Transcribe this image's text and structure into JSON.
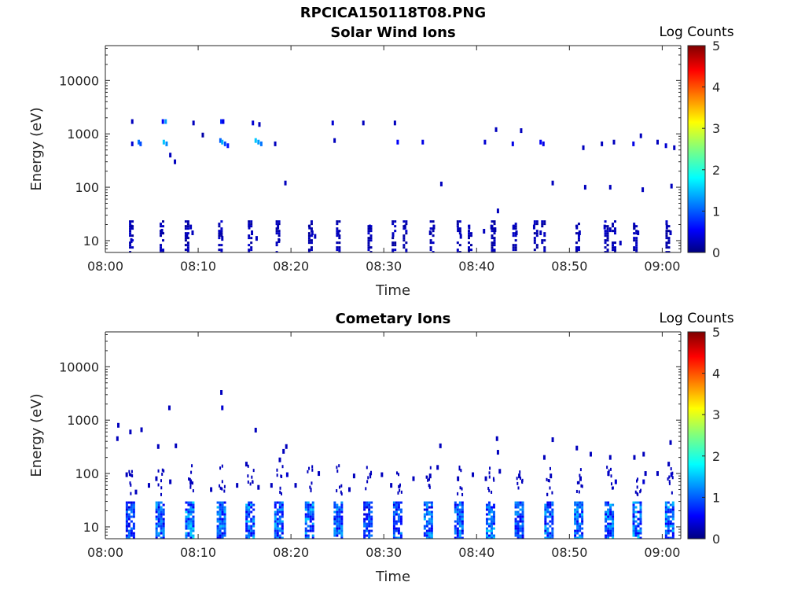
{
  "figure_title": "RPCICA150118T08.PNG",
  "colorbar": {
    "label": "Log Counts",
    "ticks": [
      "0",
      "1",
      "2",
      "3",
      "4",
      "5"
    ],
    "range": [
      0,
      5
    ],
    "colormap": "jet"
  },
  "chart_data": [
    {
      "type": "heatmap",
      "title": "Solar Wind Ions",
      "xlabel": "Time",
      "ylabel": "Energy (eV)",
      "x_ticks": [
        "08:00",
        "08:10",
        "08:20",
        "08:30",
        "08:40",
        "08:50",
        "09:00"
      ],
      "x_range_minutes": [
        0,
        62
      ],
      "y_ticks": [
        "10",
        "100",
        "1000",
        "10000"
      ],
      "y_scale": "log",
      "ylim": [
        6,
        45000
      ],
      "cells": [
        [
          2.9,
          1700,
          0.3
        ],
        [
          2.9,
          650,
          0.4
        ],
        [
          3.6,
          700,
          1.2
        ],
        [
          3.8,
          650,
          1.0
        ],
        [
          6.2,
          1700,
          0.6
        ],
        [
          6.5,
          1700,
          1.4
        ],
        [
          6.3,
          700,
          1.6
        ],
        [
          6.6,
          650,
          1.3
        ],
        [
          7.0,
          400,
          0.3
        ],
        [
          7.5,
          300,
          0.3
        ],
        [
          9.5,
          1600,
          0.3
        ],
        [
          10.5,
          950,
          0.2
        ],
        [
          12.5,
          1700,
          0.8
        ],
        [
          12.7,
          1700,
          0.5
        ],
        [
          12.4,
          750,
          1.1
        ],
        [
          12.6,
          700,
          1.5
        ],
        [
          12.9,
          650,
          1.0
        ],
        [
          13.2,
          600,
          0.7
        ],
        [
          15.9,
          1600,
          0.4
        ],
        [
          16.2,
          750,
          1.6
        ],
        [
          16.5,
          700,
          1.4
        ],
        [
          16.8,
          650,
          1.2
        ],
        [
          16.6,
          1500,
          0.3
        ],
        [
          18.3,
          650,
          0.3
        ],
        [
          19.4,
          120,
          0.3
        ],
        [
          24.5,
          1600,
          0.4
        ],
        [
          24.7,
          750,
          0.3
        ],
        [
          27.8,
          1600,
          0.3
        ],
        [
          31.2,
          1600,
          0.3
        ],
        [
          31.5,
          700,
          0.6
        ],
        [
          34.2,
          700,
          0.5
        ],
        [
          36.2,
          115,
          0.3
        ],
        [
          40.9,
          700,
          0.4
        ],
        [
          42.1,
          1200,
          0.3
        ],
        [
          43.9,
          650,
          0.5
        ],
        [
          44.8,
          1150,
          0.3
        ],
        [
          46.9,
          700,
          0.6
        ],
        [
          47.2,
          650,
          0.5
        ],
        [
          48.2,
          120,
          0.3
        ],
        [
          51.5,
          550,
          0.3
        ],
        [
          51.7,
          100,
          0.3
        ],
        [
          53.5,
          650,
          0.3
        ],
        [
          54.4,
          100,
          0.3
        ],
        [
          54.8,
          700,
          0.3
        ],
        [
          56.9,
          650,
          0.5
        ],
        [
          57.7,
          920,
          0.3
        ],
        [
          57.9,
          90,
          0.3
        ],
        [
          59.5,
          700,
          0.3
        ],
        [
          60.4,
          600,
          0.4
        ],
        [
          61.0,
          105,
          0.3
        ],
        [
          61.3,
          550,
          0.3
        ],
        [
          2.8,
          18,
          0.3
        ],
        [
          2.8,
          10,
          0.3
        ],
        [
          6.1,
          15,
          0.3
        ],
        [
          8.8,
          12,
          0.3
        ],
        [
          9.2,
          18,
          0.3
        ],
        [
          9.4,
          14,
          0.3
        ],
        [
          12.4,
          14,
          0.3
        ],
        [
          12.6,
          11,
          0.3
        ],
        [
          15.5,
          18,
          0.3
        ],
        [
          15.8,
          14,
          0.3
        ],
        [
          16.3,
          11,
          0.3
        ],
        [
          18.6,
          18,
          0.3
        ],
        [
          18.7,
          10,
          0.3
        ],
        [
          22.0,
          18,
          0.3
        ],
        [
          22.3,
          14,
          0.3
        ],
        [
          22.6,
          12,
          0.3
        ],
        [
          25.1,
          14,
          0.3
        ],
        [
          28.5,
          18,
          0.3
        ],
        [
          31.0,
          13,
          0.3
        ],
        [
          32.3,
          18,
          0.3
        ],
        [
          35.0,
          14,
          0.3
        ],
        [
          35.4,
          18,
          0.3
        ],
        [
          38.0,
          16,
          0.3
        ],
        [
          38.3,
          12,
          0.3
        ],
        [
          39.2,
          18,
          0.3
        ],
        [
          40.8,
          15,
          0.3
        ],
        [
          41.6,
          18,
          0.3
        ],
        [
          42.0,
          16,
          0.3
        ],
        [
          42.3,
          36,
          0.3
        ],
        [
          44.0,
          18,
          0.3
        ],
        [
          44.3,
          14,
          0.3
        ],
        [
          46.2,
          18,
          0.3
        ],
        [
          46.9,
          14,
          0.3
        ],
        [
          50.8,
          18,
          0.3
        ],
        [
          51.1,
          14,
          0.3
        ],
        [
          50.8,
          7,
          0.3
        ],
        [
          53.8,
          18,
          0.4
        ],
        [
          54.4,
          16,
          0.3
        ],
        [
          55.5,
          9,
          0.3
        ],
        [
          57.0,
          18,
          0.3
        ],
        [
          57.4,
          14,
          0.3
        ],
        [
          60.5,
          18,
          0.3
        ],
        [
          60.9,
          14,
          0.3
        ]
      ],
      "bursts": [
        [
          2.8,
          0.3
        ],
        [
          6.1,
          0.3
        ],
        [
          8.8,
          0.3
        ],
        [
          12.4,
          0.3
        ],
        [
          15.6,
          0.3
        ],
        [
          18.6,
          0.3
        ],
        [
          22.1,
          0.3
        ],
        [
          25.1,
          0.3
        ],
        [
          28.5,
          0.3
        ],
        [
          31.1,
          0.3
        ],
        [
          32.3,
          0.3
        ],
        [
          35.2,
          0.3
        ],
        [
          38.1,
          0.3
        ],
        [
          39.3,
          0.3
        ],
        [
          41.8,
          0.3
        ],
        [
          44.1,
          0.3
        ],
        [
          46.4,
          0.3
        ],
        [
          47.2,
          0.3
        ],
        [
          50.9,
          0.3
        ],
        [
          54.0,
          0.3
        ],
        [
          54.8,
          0.3
        ],
        [
          57.1,
          0.3
        ],
        [
          60.6,
          0.3
        ]
      ]
    },
    {
      "type": "heatmap",
      "title": "Cometary Ions",
      "xlabel": "Time",
      "ylabel": "Energy (eV)",
      "x_ticks": [
        "08:00",
        "08:10",
        "08:20",
        "08:30",
        "08:40",
        "08:50",
        "09:00"
      ],
      "x_range_minutes": [
        0,
        62
      ],
      "y_ticks": [
        "10",
        "100",
        "1000",
        "10000"
      ],
      "y_scale": "log",
      "ylim": [
        6,
        45000
      ],
      "cells": [
        [
          1.4,
          800,
          0.3
        ],
        [
          1.3,
          450,
          0.3
        ],
        [
          2.7,
          600,
          0.3
        ],
        [
          3.9,
          660,
          0.3
        ],
        [
          5.7,
          320,
          0.3
        ],
        [
          6.9,
          1700,
          0.3
        ],
        [
          7.6,
          330,
          0.3
        ],
        [
          12.5,
          3300,
          0.3
        ],
        [
          12.6,
          1700,
          0.4
        ],
        [
          16.2,
          650,
          0.3
        ],
        [
          15.2,
          150,
          0.3
        ],
        [
          19.5,
          320,
          0.3
        ],
        [
          19.2,
          260,
          0.3
        ],
        [
          18.8,
          180,
          0.3
        ],
        [
          19.6,
          95,
          0.4
        ],
        [
          23.0,
          100,
          0.3
        ],
        [
          26.8,
          90,
          0.3
        ],
        [
          29.8,
          95,
          0.3
        ],
        [
          33.2,
          80,
          0.3
        ],
        [
          36.1,
          330,
          0.3
        ],
        [
          35.8,
          130,
          0.3
        ],
        [
          39.6,
          95,
          0.3
        ],
        [
          42.2,
          450,
          0.3
        ],
        [
          42.3,
          250,
          0.3
        ],
        [
          42.5,
          110,
          0.3
        ],
        [
          48.2,
          430,
          0.3
        ],
        [
          47.3,
          200,
          0.3
        ],
        [
          50.8,
          300,
          0.3
        ],
        [
          52.3,
          230,
          0.3
        ],
        [
          54.4,
          200,
          0.3
        ],
        [
          54.2,
          100,
          0.4
        ],
        [
          57.0,
          200,
          0.3
        ],
        [
          58.0,
          230,
          0.3
        ],
        [
          60.9,
          380,
          0.3
        ],
        [
          60.7,
          150,
          0.3
        ],
        [
          61.0,
          95,
          0.4
        ],
        [
          59.5,
          100,
          0.3
        ],
        [
          58.2,
          100,
          0.3
        ],
        [
          58.0,
          70,
          0.4
        ],
        [
          55.0,
          70,
          0.4
        ],
        [
          51.2,
          80,
          0.3
        ],
        [
          48.0,
          90,
          0.3
        ],
        [
          44.6,
          90,
          0.3
        ],
        [
          41.0,
          80,
          0.3
        ],
        [
          38.0,
          80,
          0.3
        ],
        [
          35.0,
          90,
          0.3
        ],
        [
          30.8,
          60,
          0.3
        ],
        [
          26.3,
          50,
          0.3
        ],
        [
          20.5,
          60,
          0.3
        ],
        [
          17.9,
          60,
          0.3
        ],
        [
          16.5,
          55,
          0.3
        ],
        [
          14.2,
          60,
          0.3
        ],
        [
          11.4,
          50,
          0.3
        ],
        [
          9.2,
          70,
          0.3
        ],
        [
          7.0,
          70,
          0.3
        ],
        [
          5.5,
          80,
          0.3
        ],
        [
          4.7,
          60,
          0.3
        ],
        [
          3.3,
          45,
          0.3
        ],
        [
          2.3,
          95,
          0.3
        ]
      ],
      "bursts": [
        [
          2.7,
          1.0
        ],
        [
          5.9,
          1.2
        ],
        [
          9.1,
          1.4
        ],
        [
          12.5,
          1.2
        ],
        [
          15.6,
          1.3
        ],
        [
          18.7,
          1.2
        ],
        [
          22.0,
          1.3
        ],
        [
          25.1,
          1.2
        ],
        [
          28.3,
          1.0
        ],
        [
          31.5,
          1.1
        ],
        [
          34.8,
          1.2
        ],
        [
          38.1,
          1.2
        ],
        [
          41.5,
          1.3
        ],
        [
          44.6,
          1.1
        ],
        [
          47.8,
          1.2
        ],
        [
          51.0,
          1.3
        ],
        [
          54.3,
          1.3
        ],
        [
          57.3,
          1.3
        ],
        [
          60.8,
          1.3
        ]
      ]
    }
  ]
}
